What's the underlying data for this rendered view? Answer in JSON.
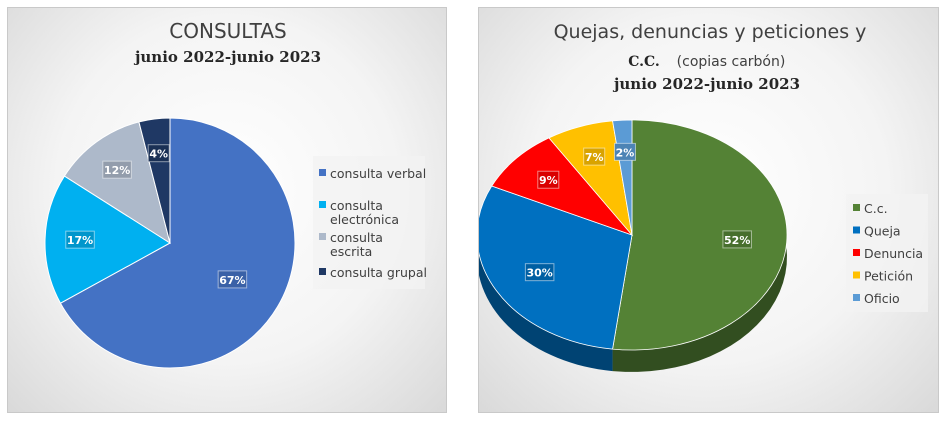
{
  "chart_data": [
    {
      "type": "pie",
      "title": "CONSULTAS",
      "subtitle": "junio 2022-junio 2023",
      "categories": [
        "consulta verbal",
        "consulta electrónica",
        "consulta escrita",
        "consulta grupal"
      ],
      "legend_lines": [
        [
          "consulta verbal"
        ],
        [
          "consulta",
          "electrónica"
        ],
        [
          "consulta",
          "escrita"
        ],
        [
          "consulta grupal"
        ]
      ],
      "values": [
        67,
        17,
        12,
        4
      ],
      "labels": [
        "67%",
        "17%",
        "12%",
        "4%"
      ],
      "colors": [
        "#4472c4",
        "#00b0f0",
        "#adb9ca",
        "#1f3864"
      ],
      "legend_position": "right"
    },
    {
      "type": "pie",
      "title": "Quejas, denuncias y peticiones y",
      "subtitle_cc": "C.C.",
      "subtitle_note": "(copias carbón)",
      "subtitle": "junio 2022-junio 2023",
      "categories": [
        "C.c.",
        "Queja",
        "Denuncia",
        "Petición",
        "Oficio"
      ],
      "values": [
        52,
        30,
        9,
        7,
        2
      ],
      "labels": [
        "52%",
        "30%",
        "9%",
        "7%",
        "2%"
      ],
      "colors": [
        "#548235",
        "#0070c0",
        "#ff0000",
        "#ffc000",
        "#5b9bd5"
      ],
      "legend_position": "right",
      "style": "3d"
    }
  ]
}
